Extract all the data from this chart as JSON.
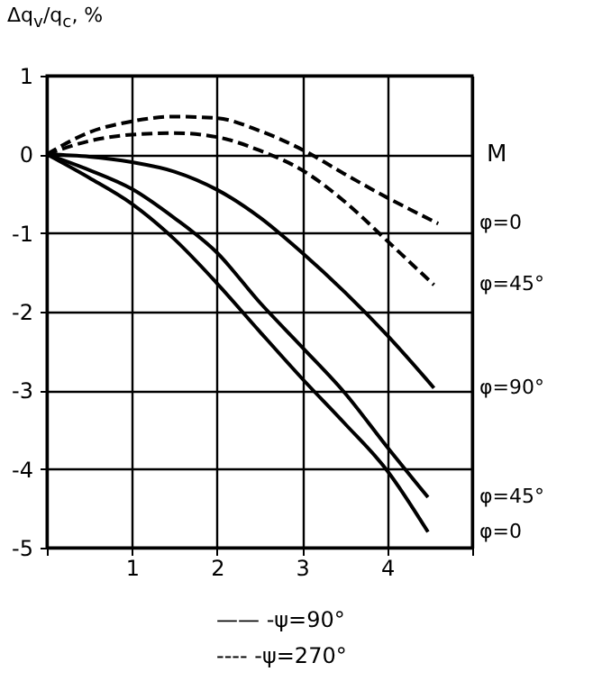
{
  "chart_data": {
    "type": "line",
    "xlabel": "M",
    "ylabel": "Δq$_{v}$/q$_{c}$, %",
    "xlim": [
      0,
      5
    ],
    "ylim": [
      -5,
      1
    ],
    "xticks": [
      {
        "value": 0,
        "label": null
      },
      1,
      2,
      3,
      4,
      {
        "value": 5,
        "label": null
      }
    ],
    "yticks": [
      -5,
      -4,
      -3,
      -2,
      -1,
      0,
      1
    ],
    "grid": true,
    "marker": "none",
    "series": [
      {
        "name": "φ=0",
        "color": "#000000",
        "line_style": "dashed",
        "x": [
          0,
          0.5,
          1,
          1.5,
          2,
          2.5,
          3,
          3.5,
          4,
          4.6
        ],
        "values": [
          0,
          0.28,
          0.42,
          0.48,
          0.46,
          0.3,
          0.06,
          -0.25,
          -0.55,
          -0.88
        ]
      },
      {
        "name": "φ=45°",
        "color": "#000000",
        "line_style": "dashed",
        "x": [
          0,
          0.5,
          1,
          1.5,
          2,
          2.5,
          3,
          3.5,
          4,
          4.55
        ],
        "values": [
          0,
          0.17,
          0.25,
          0.27,
          0.22,
          0.05,
          -0.2,
          -0.6,
          -1.1,
          -1.66
        ]
      },
      {
        "name": "φ=90°",
        "color": "#000000",
        "line_style": "solid",
        "x": [
          0,
          0.5,
          1,
          1.5,
          2,
          2.5,
          3,
          3.5,
          4,
          4.55
        ],
        "values": [
          0,
          -0.03,
          -0.1,
          -0.22,
          -0.45,
          -0.8,
          -1.25,
          -1.75,
          -2.3,
          -2.97
        ]
      },
      {
        "name": "φ=45°",
        "color": "#000000",
        "line_style": "solid",
        "x": [
          0,
          0.5,
          1,
          1.5,
          2,
          2.5,
          3,
          3.5,
          4,
          4.48
        ],
        "values": [
          0,
          -0.2,
          -0.44,
          -0.81,
          -1.25,
          -1.88,
          -2.45,
          -3.03,
          -3.72,
          -4.36
        ]
      },
      {
        "name": "φ=0",
        "color": "#000000",
        "line_style": "solid",
        "x": [
          0,
          0.5,
          1,
          1.5,
          2,
          2.5,
          3,
          3.5,
          4,
          4.48
        ],
        "values": [
          0,
          -0.3,
          -0.63,
          -1.08,
          -1.64,
          -2.25,
          -2.85,
          -3.42,
          -4.02,
          -4.8
        ]
      }
    ],
    "annotations": [
      "—— -ψ=90°",
      "---- -ψ=270°"
    ]
  }
}
